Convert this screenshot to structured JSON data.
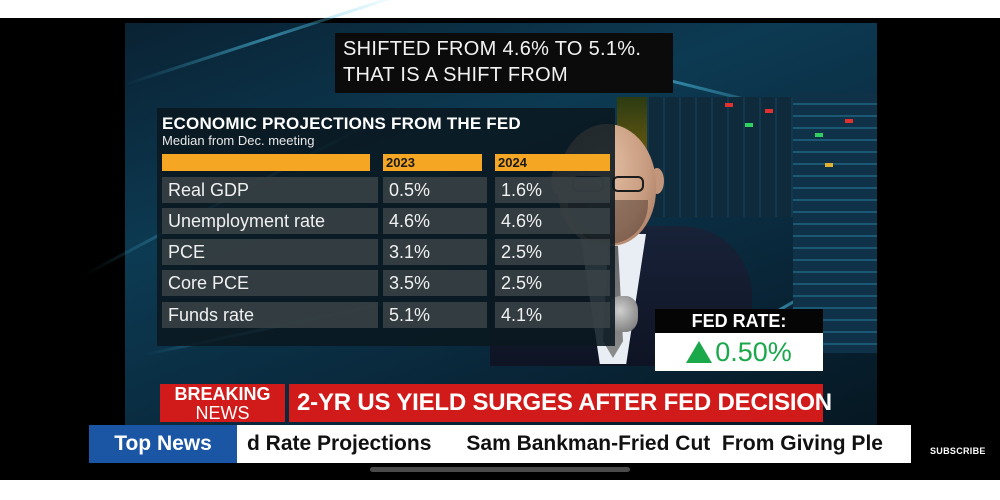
{
  "caption": {
    "line1": "SHIFTED FROM 4.6% TO 5.1%.",
    "line2": "THAT IS A SHIFT FROM"
  },
  "projections": {
    "title": "ECONOMIC PROJECTIONS FROM THE FED",
    "subtitle": "Median from Dec. meeting",
    "columns": [
      "",
      "2023",
      "2024"
    ],
    "rows": [
      {
        "label": "Real GDP",
        "y2023": "0.5%",
        "y2024": "1.6%"
      },
      {
        "label": "Unemployment rate",
        "y2023": "4.6%",
        "y2024": "4.6%"
      },
      {
        "label": "PCE",
        "y2023": "3.1%",
        "y2024": "2.5%"
      },
      {
        "label": "Core PCE",
        "y2023": "3.5%",
        "y2024": "2.5%"
      },
      {
        "label": "Funds rate",
        "y2023": "5.1%",
        "y2024": "4.1%"
      }
    ],
    "header_color": "#f5a623"
  },
  "fed_rate": {
    "label": "FED RATE:",
    "value": "0.50%",
    "direction_icon": "up-arrow-icon",
    "color": "#1aa84a"
  },
  "breaking": {
    "line1": "BREAKING",
    "line2": "NEWS",
    "headline": "2-YR US YIELD SURGES AFTER FED DECISION",
    "color": "#d11a1a"
  },
  "ticker": {
    "label": "Top News",
    "text": "d Rate Projections      Sam Bankman-Fried Cut  From Giving Ple",
    "label_color": "#1b56a5"
  },
  "player": {
    "subscribe": "SUBSCRIBE"
  }
}
